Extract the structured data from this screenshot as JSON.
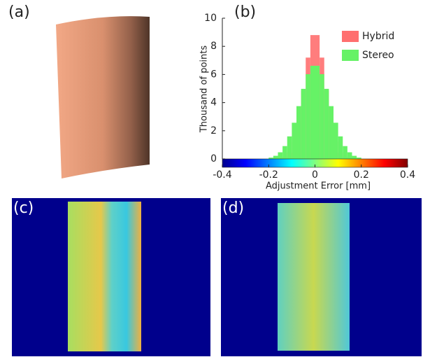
{
  "panel_labels": [
    "(a)",
    "(b)",
    "(c)",
    "(d)"
  ],
  "chart_data": {
    "type": "histogram",
    "xlabel": "Adjustment Error [mm]",
    "ylabel": "Thousand of points",
    "bins": [
      -0.2,
      -0.18,
      -0.16,
      -0.14,
      -0.12,
      -0.1,
      -0.08,
      -0.06,
      -0.04,
      -0.02,
      0,
      0.02,
      0.04,
      0.06,
      0.08,
      0.1,
      0.12,
      0.14,
      0.16,
      0.18,
      0.2
    ],
    "series": [
      {
        "name": "Hybrid",
        "color": "#ff6f6f",
        "values": [
          0,
          0.01,
          0.04,
          0.14,
          0.45,
          1.22,
          2.68,
          4.86,
          7.2,
          8.8,
          8.8,
          7.2,
          4.86,
          2.68,
          1.22,
          0.45,
          0.14,
          0.04,
          0.01,
          0
        ]
      },
      {
        "name": "Stereo",
        "color": "#66f266",
        "values": [
          0.09,
          0.22,
          0.47,
          0.91,
          1.6,
          2.57,
          3.75,
          4.98,
          6.02,
          6.62,
          6.62,
          6.02,
          4.98,
          3.75,
          2.57,
          1.6,
          0.91,
          0.47,
          0.22,
          0.09
        ]
      }
    ],
    "xlim": [
      -0.4,
      0.4
    ],
    "xticks": [
      -0.4,
      -0.2,
      0,
      0.2,
      0.4
    ],
    "ylim": [
      0,
      10
    ],
    "yticks": [
      0,
      2,
      4,
      6,
      8,
      10
    ],
    "legend": "upper right",
    "colorbar": "jet"
  }
}
